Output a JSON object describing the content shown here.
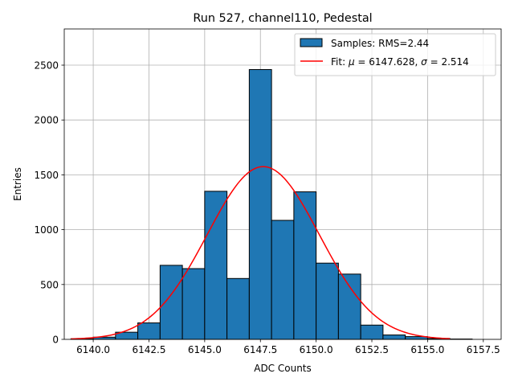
{
  "chart_data": {
    "type": "bar",
    "title": "Run 527, channel110, Pedestal",
    "xlabel": "ADC Counts",
    "ylabel": "Entries",
    "xlim": [
      6138.7,
      6158.3
    ],
    "ylim": [
      0,
      2830
    ],
    "xticks": [
      6140.0,
      6142.5,
      6145.0,
      6147.5,
      6150.0,
      6152.5,
      6155.0,
      6157.5
    ],
    "xtick_labels": [
      "6140.0",
      "6142.5",
      "6145.0",
      "6147.5",
      "6150.0",
      "6152.5",
      "6155.0",
      "6157.5"
    ],
    "yticks": [
      0,
      500,
      1000,
      1500,
      2000,
      2500
    ],
    "ytick_labels": [
      "0",
      "500",
      "1000",
      "1500",
      "2000",
      "2500"
    ],
    "grid": true,
    "legend_position": "upper right",
    "histogram": {
      "name": "Samples: RMS=2.44",
      "color": "#1f77b4",
      "edge_color": "#000000",
      "bin_edges": [
        6139.0,
        6140.0,
        6141.0,
        6142.0,
        6143.0,
        6144.0,
        6145.0,
        6146.0,
        6147.0,
        6148.0,
        6149.0,
        6150.0,
        6151.0,
        6152.0,
        6153.0,
        6154.0,
        6155.0,
        6156.0,
        6157.0
      ],
      "counts": [
        5,
        20,
        65,
        150,
        675,
        645,
        1350,
        555,
        2460,
        1085,
        1345,
        695,
        595,
        130,
        40,
        25,
        8,
        3
      ]
    },
    "fit": {
      "name": "Fit: μ = 6147.628, σ = 2.514",
      "label_prefix": "Fit: ",
      "mu_symbol": "μ",
      "mu_text": " = 6147.628, ",
      "sigma_symbol": "σ",
      "sigma_text": " = 2.514",
      "color": "#ff0000",
      "mu": 6147.628,
      "sigma": 2.514,
      "amplitude": 1575,
      "x_range": [
        6139.0,
        6156.0
      ]
    }
  }
}
